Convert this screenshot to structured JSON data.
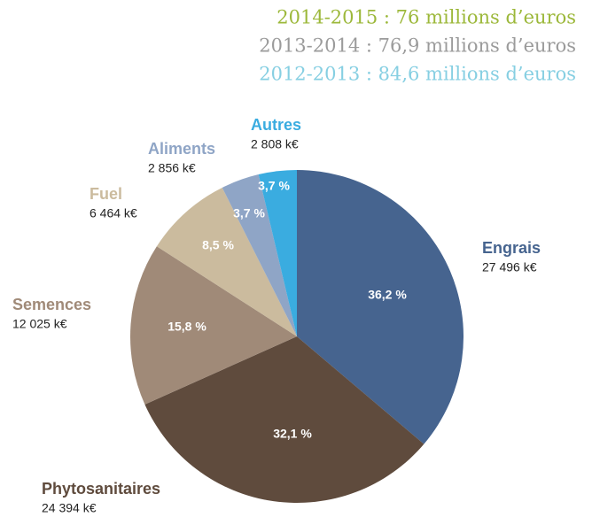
{
  "chart_data": {
    "type": "pie",
    "header_lines": [
      {
        "text": "2014-2015 : 76 millions d’euros",
        "color": "#9cb83a"
      },
      {
        "text": "2013-2014 : 76,9 millions d’euros",
        "color": "#9b9b9b"
      },
      {
        "text": "2012-2013 : 84,6 millions d’euros",
        "color": "#86cfe2"
      }
    ],
    "categories": [
      "Engrais",
      "Phytosanitaires",
      "Semences",
      "Fuel",
      "Aliments",
      "Autres"
    ],
    "values": [
      36.2,
      32.1,
      15.8,
      8.5,
      3.7,
      3.7
    ],
    "value_labels": [
      "36,2 %",
      "32,1 %",
      "15,8 %",
      "8,5 %",
      "3,7 %",
      "3,7 %"
    ],
    "amount_labels": [
      "27 496 k€",
      "24 394 k€",
      "12 025 k€",
      "6 464 k€",
      "2 856 k€",
      "2 808 k€"
    ],
    "colors": [
      "#46648f",
      "#5f4b3d",
      "#a08a78",
      "#cbbb9e",
      "#8fa5c6",
      "#3aace0"
    ]
  }
}
